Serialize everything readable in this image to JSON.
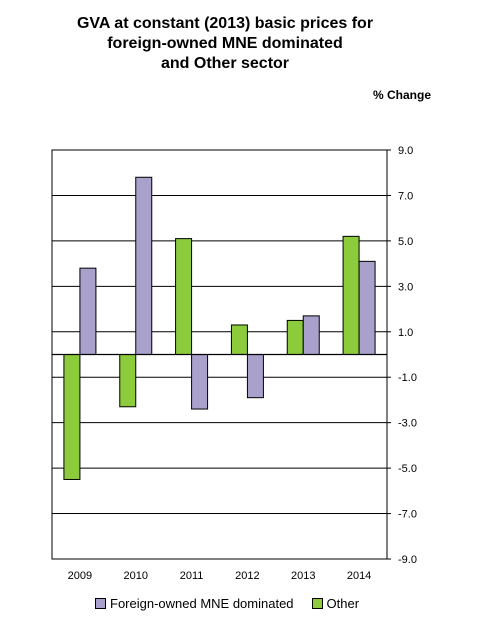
{
  "chart_data": {
    "type": "bar",
    "title_lines": [
      "GVA at constant (2013) basic prices for",
      "foreign-owned MNE dominated",
      "and Other sector"
    ],
    "unit_label": "% Change",
    "categories": [
      "2009",
      "2010",
      "2011",
      "2012",
      "2013",
      "2014"
    ],
    "series": [
      {
        "name": "Other",
        "color": "#8ccb3c",
        "values": [
          -5.5,
          -2.3,
          5.1,
          1.3,
          1.5,
          5.2
        ]
      },
      {
        "name": "Foreign-owned MNE dominated",
        "color": "#a9a0cc",
        "values": [
          3.8,
          7.8,
          -2.4,
          -1.9,
          1.7,
          4.1
        ]
      }
    ],
    "ylim": [
      -9.0,
      9.0
    ],
    "yticks": [
      "9.0",
      "7.0",
      "5.0",
      "3.0",
      "1.0",
      "-1.0",
      "-3.0",
      "-5.0",
      "-7.0",
      "-9.0"
    ],
    "grid": true,
    "legend_position": "bottom",
    "legend": [
      {
        "label": "Foreign-owned MNE dominated",
        "color": "#a9a0cc"
      },
      {
        "label": "Other",
        "color": "#8ccb3c"
      }
    ]
  }
}
